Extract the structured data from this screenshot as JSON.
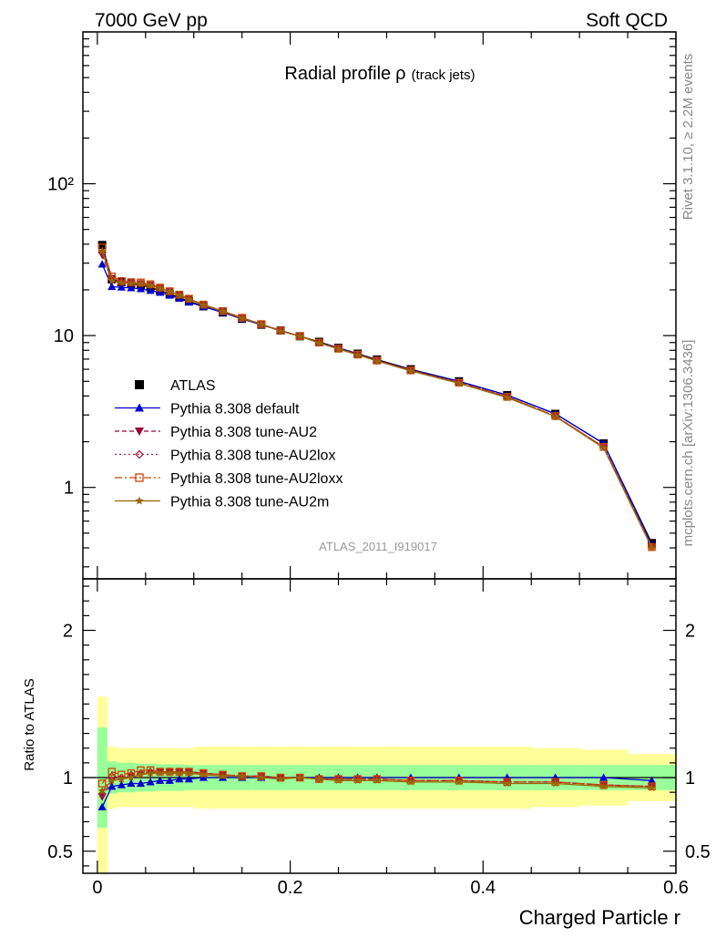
{
  "header": {
    "left": "7000 GeV pp",
    "right": "Soft QCD"
  },
  "main_title": {
    "text": "Radial profile",
    "symbol": "ρ",
    "suffix": "(track jets)"
  },
  "side_labels": {
    "rivet": "Rivet 3.1.10, ≥ 2.2M events",
    "mcplots": "mcplots.cern.ch [arXiv:1306.3436]"
  },
  "watermark": "ATLAS_2011_I919017",
  "ratio_ylabel": "Ratio to ATLAS",
  "xlabel": "Charged Particle r",
  "chart_data": [
    {
      "type": "line",
      "panel": "main",
      "yscale": "log",
      "xlim": [
        -0.015,
        0.6
      ],
      "ylim": [
        0.25,
        1000
      ],
      "ytick_labels": [
        "10²",
        "10",
        "1"
      ],
      "legend_position": "middle-left",
      "x": [
        0.005,
        0.015,
        0.025,
        0.035,
        0.045,
        0.055,
        0.065,
        0.075,
        0.085,
        0.095,
        0.11,
        0.13,
        0.15,
        0.17,
        0.19,
        0.21,
        0.23,
        0.25,
        0.27,
        0.29,
        0.325,
        0.375,
        0.425,
        0.475,
        0.525,
        0.575
      ],
      "series": [
        {
          "name": "ATLAS",
          "color": "#000000",
          "marker": "square",
          "dash": "",
          "values": [
            39.5,
            23.5,
            22.5,
            22,
            21.5,
            20.8,
            19.8,
            18.8,
            17.8,
            16.8,
            15.6,
            14.2,
            12.9,
            11.8,
            10.8,
            9.9,
            9.1,
            8.3,
            7.6,
            6.95,
            6.0,
            5.0,
            4.05,
            3.05,
            1.95,
            0.43
          ]
        },
        {
          "name": "Pythia 8.308 default",
          "color": "#0000cc",
          "marker": "triangle-up",
          "dash": "",
          "values": [
            29.5,
            21,
            20.8,
            20.6,
            20.3,
            19.8,
            19.2,
            18.4,
            17.6,
            16.6,
            15.5,
            14.2,
            12.9,
            11.8,
            10.8,
            9.9,
            9.0,
            8.3,
            7.55,
            6.9,
            5.95,
            5.0,
            4.05,
            3.05,
            1.95,
            0.42
          ]
        },
        {
          "name": "Pythia 8.308 tune-AU2",
          "color": "#990033",
          "marker": "triangle-down",
          "dash": "5,3",
          "values": [
            34,
            23,
            22.3,
            22.2,
            22,
            21.5,
            20.6,
            19.5,
            18.5,
            17.4,
            16,
            14.5,
            13.1,
            11.9,
            10.8,
            9.9,
            9.0,
            8.2,
            7.5,
            6.85,
            5.9,
            4.9,
            3.95,
            2.95,
            1.85,
            0.405
          ]
        },
        {
          "name": "Pythia 8.308 tune-AU2lox",
          "color": "#aa2244",
          "marker": "diamond",
          "dash": "2,3",
          "values": [
            35,
            23.8,
            22.6,
            22.4,
            22.1,
            21.5,
            20.6,
            19.5,
            18.5,
            17.4,
            16,
            14.5,
            13.1,
            11.9,
            10.8,
            9.9,
            9.0,
            8.2,
            7.5,
            6.85,
            5.9,
            4.9,
            3.95,
            2.95,
            1.85,
            0.405
          ]
        },
        {
          "name": "Pythia 8.308 tune-AU2loxx",
          "color": "#cc4400",
          "marker": "square-open",
          "dash": "8,3,2,3",
          "values": [
            38,
            24.5,
            22.9,
            22.5,
            22.4,
            21.8,
            20.7,
            19.6,
            18.6,
            17.5,
            16,
            14.5,
            13.1,
            11.9,
            10.8,
            9.9,
            9.0,
            8.2,
            7.5,
            6.85,
            5.9,
            4.9,
            3.95,
            2.95,
            1.85,
            0.405
          ]
        },
        {
          "name": "Pythia 8.308 tune-AU2m",
          "color": "#996600",
          "marker": "star",
          "dash": "",
          "values": [
            36,
            23,
            22.3,
            22.1,
            21.9,
            21.4,
            20.5,
            19.5,
            18.4,
            17.3,
            15.9,
            14.4,
            13.0,
            11.9,
            10.7,
            9.9,
            8.95,
            8.15,
            7.45,
            6.8,
            5.85,
            4.85,
            3.9,
            2.93,
            1.82,
            0.4
          ]
        }
      ]
    },
    {
      "type": "line",
      "panel": "ratio",
      "xlim": [
        -0.015,
        0.6
      ],
      "ylim": [
        0.35,
        2.35
      ],
      "xticks": [
        0,
        0.2,
        0.4,
        0.6
      ],
      "xtick_labels": [
        "0",
        "0.2",
        "0.4",
        "0.6"
      ],
      "yticks": [
        0.5,
        1,
        2
      ],
      "ytick_labels": [
        "0.5",
        "1",
        "2"
      ],
      "bins": [
        [
          0,
          0.01
        ],
        [
          0.01,
          0.02
        ],
        [
          0.02,
          0.03
        ],
        [
          0.03,
          0.04
        ],
        [
          0.04,
          0.05
        ],
        [
          0.05,
          0.06
        ],
        [
          0.06,
          0.07
        ],
        [
          0.07,
          0.08
        ],
        [
          0.08,
          0.09
        ],
        [
          0.09,
          0.1
        ],
        [
          0.1,
          0.12
        ],
        [
          0.12,
          0.14
        ],
        [
          0.14,
          0.16
        ],
        [
          0.16,
          0.18
        ],
        [
          0.18,
          0.2
        ],
        [
          0.2,
          0.22
        ],
        [
          0.22,
          0.24
        ],
        [
          0.24,
          0.26
        ],
        [
          0.26,
          0.28
        ],
        [
          0.28,
          0.3
        ],
        [
          0.3,
          0.35
        ],
        [
          0.35,
          0.4
        ],
        [
          0.4,
          0.45
        ],
        [
          0.45,
          0.5
        ],
        [
          0.5,
          0.55
        ],
        [
          0.55,
          0.6
        ]
      ],
      "band_stat": [
        [
          0.66,
          1.34
        ],
        [
          0.89,
          1.11
        ],
        [
          0.9,
          1.1
        ],
        [
          0.9,
          1.1
        ],
        [
          0.905,
          1.095
        ],
        [
          0.905,
          1.095
        ],
        [
          0.91,
          1.09
        ],
        [
          0.91,
          1.09
        ],
        [
          0.91,
          1.09
        ],
        [
          0.915,
          1.085
        ],
        [
          0.915,
          1.085
        ],
        [
          0.915,
          1.085
        ],
        [
          0.915,
          1.085
        ],
        [
          0.915,
          1.085
        ],
        [
          0.915,
          1.085
        ],
        [
          0.915,
          1.085
        ],
        [
          0.915,
          1.085
        ],
        [
          0.915,
          1.085
        ],
        [
          0.915,
          1.085
        ],
        [
          0.915,
          1.085
        ],
        [
          0.915,
          1.085
        ],
        [
          0.915,
          1.085
        ],
        [
          0.915,
          1.085
        ],
        [
          0.915,
          1.085
        ],
        [
          0.915,
          1.085
        ],
        [
          0.915,
          1.085
        ]
      ],
      "band_total": [
        [
          0.35,
          1.55
        ],
        [
          0.79,
          1.21
        ],
        [
          0.8,
          1.2
        ],
        [
          0.8,
          1.2
        ],
        [
          0.8,
          1.2
        ],
        [
          0.8,
          1.2
        ],
        [
          0.8,
          1.2
        ],
        [
          0.8,
          1.2
        ],
        [
          0.8,
          1.2
        ],
        [
          0.8,
          1.2
        ],
        [
          0.79,
          1.21
        ],
        [
          0.79,
          1.21
        ],
        [
          0.79,
          1.21
        ],
        [
          0.79,
          1.21
        ],
        [
          0.79,
          1.21
        ],
        [
          0.79,
          1.21
        ],
        [
          0.79,
          1.21
        ],
        [
          0.79,
          1.21
        ],
        [
          0.79,
          1.21
        ],
        [
          0.79,
          1.21
        ],
        [
          0.79,
          1.21
        ],
        [
          0.79,
          1.21
        ],
        [
          0.79,
          1.21
        ],
        [
          0.8,
          1.2
        ],
        [
          0.81,
          1.19
        ],
        [
          0.84,
          1.16
        ]
      ],
      "series": [
        {
          "name": "Pythia 8.308 default",
          "color": "#0000cc",
          "marker": "triangle-up",
          "dash": "",
          "values": [
            0.8,
            0.94,
            0.95,
            0.96,
            0.96,
            0.97,
            0.98,
            0.98,
            0.99,
            0.99,
            1.0,
            1.0,
            1.0,
            1.0,
            1.0,
            1.0,
            1.0,
            1.0,
            1.0,
            1.0,
            1.0,
            1.0,
            1.0,
            1.0,
            1.0,
            0.98
          ]
        },
        {
          "name": "Pythia 8.308 tune-AU2",
          "color": "#990033",
          "marker": "triangle-down",
          "dash": "5,3",
          "values": [
            0.87,
            0.98,
            0.99,
            1.01,
            1.02,
            1.03,
            1.04,
            1.04,
            1.04,
            1.04,
            1.03,
            1.02,
            1.01,
            1.01,
            1.0,
            1.0,
            0.99,
            0.99,
            0.99,
            0.99,
            0.98,
            0.98,
            0.97,
            0.97,
            0.95,
            0.94
          ]
        },
        {
          "name": "Pythia 8.308 tune-AU2lox",
          "color": "#aa2244",
          "marker": "diamond",
          "dash": "2,3",
          "values": [
            0.89,
            1.01,
            1.0,
            1.02,
            1.03,
            1.04,
            1.04,
            1.04,
            1.04,
            1.04,
            1.03,
            1.02,
            1.01,
            1.01,
            1.0,
            1.0,
            0.99,
            0.99,
            0.99,
            0.99,
            0.98,
            0.98,
            0.97,
            0.97,
            0.95,
            0.94
          ]
        },
        {
          "name": "Pythia 8.308 tune-AU2loxx",
          "color": "#cc4400",
          "marker": "square-open",
          "dash": "8,3,2,3",
          "values": [
            0.96,
            1.04,
            1.02,
            1.03,
            1.05,
            1.05,
            1.04,
            1.04,
            1.04,
            1.04,
            1.03,
            1.02,
            1.01,
            1.01,
            1.0,
            1.0,
            0.99,
            0.99,
            0.99,
            0.99,
            0.98,
            0.98,
            0.97,
            0.97,
            0.95,
            0.94
          ]
        },
        {
          "name": "Pythia 8.308 tune-AU2m",
          "color": "#996600",
          "marker": "star",
          "dash": "",
          "values": [
            0.91,
            0.98,
            0.99,
            1.0,
            1.02,
            1.03,
            1.03,
            1.03,
            1.03,
            1.03,
            1.02,
            1.01,
            1.01,
            1.0,
            0.99,
            1.0,
            0.99,
            0.98,
            0.98,
            0.98,
            0.97,
            0.97,
            0.96,
            0.96,
            0.94,
            0.93
          ]
        }
      ]
    }
  ]
}
